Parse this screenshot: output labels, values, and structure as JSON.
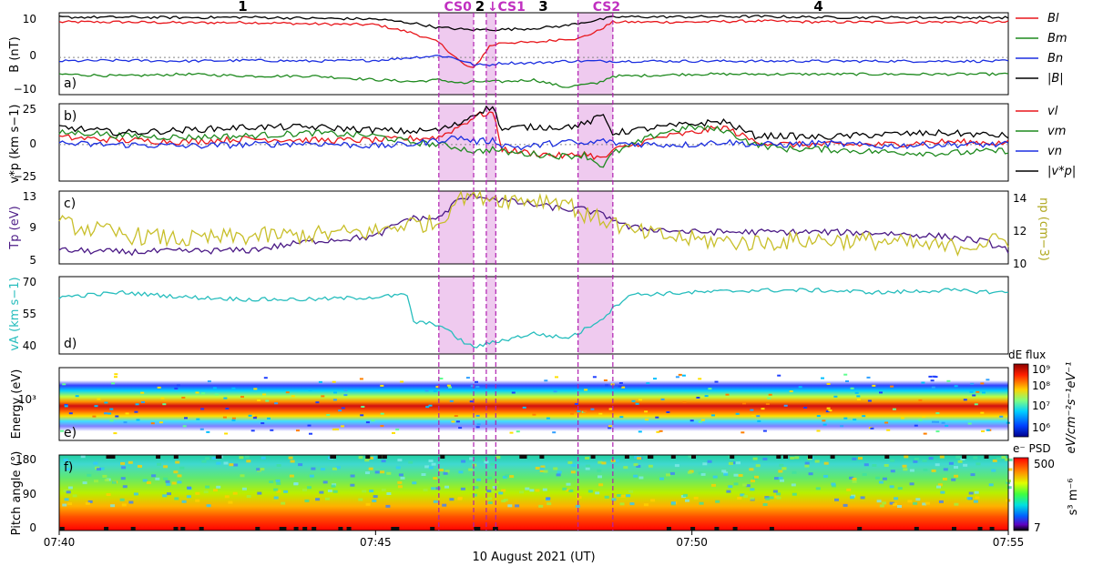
{
  "xlabel": "10 August 2021 (UT)",
  "x_ticks": [
    "07:40",
    "07:45",
    "07:50",
    "07:55"
  ],
  "x_range": [
    0,
    15
  ],
  "region_numbers": [
    {
      "label": "1",
      "t": 2.9
    },
    {
      "label": "2",
      "t": 6.65
    },
    {
      "label": "3",
      "t": 7.65
    },
    {
      "label": "4",
      "t": 12.0
    }
  ],
  "cs_labels": [
    {
      "label": "CS0",
      "t": 6.3
    },
    {
      "label": "↓",
      "t": 6.85
    },
    {
      "label": "CS1",
      "t": 7.15
    },
    {
      "label": "CS2",
      "t": 8.65
    }
  ],
  "cs_shaded_intervals": [
    [
      6.0,
      6.55
    ],
    [
      6.75,
      6.9
    ],
    [
      8.2,
      8.75
    ]
  ],
  "cs_boundaries": [
    6.0,
    6.55,
    6.75,
    6.9,
    8.2,
    8.75
  ],
  "colors": {
    "red": "#e8161b",
    "green": "#1f8a1f",
    "blue": "#1b2ee0",
    "black": "#000000",
    "purple": "#4b1a86",
    "olive": "#c8bf2a",
    "cyan": "#26bdbd",
    "cs_shade": "#e9b8ea",
    "cs_line": "#b020b0"
  },
  "panels": {
    "a": {
      "letter": "a)",
      "ylabel": "B (nT)",
      "ylim": [
        -10,
        12
      ],
      "ticks": [
        "10",
        "0",
        "−10"
      ]
    },
    "b": {
      "letter": "b)",
      "ylabel": "v*p (km s−1)",
      "ylim": [
        -25,
        28
      ],
      "ticks": [
        "25",
        "0",
        "−25"
      ]
    },
    "c": {
      "letter": "c)",
      "ylabel_left": "Tp (eV)",
      "ylabel_right": "np (cm−3)",
      "ticks_left": [
        "13",
        "9",
        "5"
      ],
      "ticks_right": [
        "14",
        "12",
        "10"
      ]
    },
    "d": {
      "letter": "d)",
      "ylabel": "vA (km s−1)",
      "ylim": [
        36,
        70
      ],
      "ticks": [
        "70",
        "55",
        "40"
      ]
    },
    "e": {
      "letter": "e)",
      "ylabel": "Energy (eV)",
      "ticks": [
        "10³"
      ],
      "colorbar_title": "dE flux",
      "colorbar_ticks": [
        "10⁹",
        "10⁸",
        "10⁷",
        "10⁶"
      ],
      "colorbar_label": "eV/cm⁻²s⁻¹eV⁻¹"
    },
    "f": {
      "letter": "f)",
      "ylabel": "Pitch angle (°)",
      "ticks": [
        "180",
        "90",
        "0"
      ],
      "colorbar_title": "e⁻ PSD",
      "colorbar_ticks": [
        "500",
        "7"
      ],
      "colorbar_label": "s³ m⁻⁶"
    }
  },
  "legend_a": [
    "Bl",
    "Bm",
    "Bn",
    "|B|"
  ],
  "legend_b": [
    "vl",
    "vm",
    "vn",
    "|v*p|"
  ],
  "chart_data": [
    {
      "type": "line",
      "panel": "a",
      "x": [
        0,
        1,
        2,
        3,
        4,
        5,
        5.6,
        6.0,
        6.2,
        6.4,
        6.55,
        6.8,
        7.0,
        7.5,
        8.0,
        8.2,
        8.5,
        8.75,
        9,
        10,
        11,
        12,
        13,
        14,
        15
      ],
      "series": [
        {
          "name": "Bl",
          "color": "red",
          "values": [
            9.5,
            9.5,
            9.3,
            9.4,
            9.0,
            8.8,
            6.5,
            4,
            1,
            -2,
            -3,
            3,
            4,
            4,
            5,
            5,
            7,
            9.5,
            9.5,
            9.5,
            9.8,
            9.5,
            9.5,
            9.5,
            9.5
          ]
        },
        {
          "name": "Bm",
          "color": "green",
          "values": [
            -4.5,
            -5,
            -4.5,
            -5,
            -5,
            -6,
            -6.5,
            -6,
            -6.5,
            -7,
            -6.5,
            -6.5,
            -6.5,
            -6,
            -8,
            -7.5,
            -7,
            -5,
            -5,
            -4.5,
            -4.5,
            -4.5,
            -4.5,
            -4.5,
            -4.5
          ]
        },
        {
          "name": "Bn",
          "color": "blue",
          "values": [
            -1,
            -0.8,
            -1,
            -0.8,
            -1,
            -0.8,
            0,
            0.5,
            0,
            -1,
            -2,
            -2,
            -1.5,
            -1.5,
            -1,
            -1,
            -1,
            -1,
            -1,
            -1,
            -1,
            -1,
            -1,
            -1,
            -1
          ]
        },
        {
          "name": "|B|",
          "color": "black",
          "values": [
            10.8,
            10.8,
            10.7,
            10.8,
            10.5,
            10.3,
            9.2,
            8.0,
            7.8,
            7.5,
            7.4,
            7.5,
            7.5,
            7.8,
            8.5,
            9.2,
            10.0,
            10.8,
            10.9,
            10.9,
            11.0,
            10.8,
            10.7,
            10.7,
            10.7
          ]
        }
      ]
    },
    {
      "type": "line",
      "panel": "b",
      "x": [
        0,
        0.5,
        1,
        2,
        3,
        4,
        5,
        5.5,
        6.0,
        6.3,
        6.6,
        6.85,
        7.0,
        7.3,
        8.0,
        8.3,
        8.6,
        8.75,
        9.5,
        10,
        10.5,
        11,
        11.5,
        12,
        13,
        14,
        15
      ],
      "series": [
        {
          "name": "vl",
          "color": "red",
          "values": [
            5,
            4,
            3,
            2,
            4,
            3,
            3,
            4,
            5,
            12,
            20,
            22,
            -3,
            -5,
            -8,
            -6,
            -10,
            -4,
            5,
            8,
            12,
            2,
            0,
            0,
            0,
            2,
            1
          ]
        },
        {
          "name": "vm",
          "color": "green",
          "values": [
            8,
            8,
            6,
            5,
            6,
            8,
            6,
            2,
            0,
            -2,
            -5,
            -3,
            -5,
            -6,
            -8,
            -7,
            -15,
            -6,
            8,
            12,
            10,
            0,
            -3,
            -3,
            -5,
            -6,
            -4
          ]
        },
        {
          "name": "vn",
          "color": "blue",
          "values": [
            1,
            0,
            0,
            -1,
            0,
            1,
            -1,
            0,
            3,
            5,
            2,
            3,
            0,
            -2,
            2,
            0,
            3,
            1,
            0,
            0,
            2,
            0,
            0,
            1,
            -1,
            0,
            0
          ]
        },
        {
          "name": "|v*p|",
          "color": "black",
          "values": [
            12,
            10,
            8,
            10,
            12,
            12,
            10,
            9,
            10,
            14,
            22,
            26,
            10,
            12,
            12,
            14,
            20,
            8,
            12,
            14,
            16,
            6,
            6,
            5,
            7,
            8,
            6
          ]
        }
      ]
    },
    {
      "type": "line",
      "panel": "c",
      "x": [
        0,
        1,
        2,
        3,
        4,
        5,
        5.5,
        6.0,
        6.3,
        6.6,
        7.0,
        7.5,
        8.0,
        8.3,
        8.75,
        9,
        10,
        11,
        12,
        13,
        14,
        14.6,
        15
      ],
      "series": [
        {
          "name": "Tp",
          "axis": "left",
          "ylim": [
            5,
            13
          ],
          "color": "purple",
          "values": [
            6.5,
            6.3,
            6.4,
            6.5,
            7.5,
            8,
            10,
            10,
            12,
            12.5,
            12,
            11.5,
            11,
            11,
            10,
            9,
            8.5,
            8.5,
            8.5,
            8.4,
            8,
            7.5,
            6.5
          ]
        },
        {
          "name": "np",
          "axis": "right",
          "ylim": [
            10,
            14.5
          ],
          "color": "olive",
          "values": [
            12.5,
            11.8,
            11.5,
            11.7,
            11.8,
            12,
            12.5,
            12.5,
            14.2,
            14.3,
            14.0,
            14.0,
            13.9,
            13.0,
            12.6,
            12,
            11.5,
            11.3,
            11.5,
            11.4,
            11,
            11.3,
            11.5
          ]
        }
      ]
    },
    {
      "type": "line",
      "panel": "d",
      "x": [
        0,
        1,
        2,
        3,
        4,
        5,
        5.5,
        5.6,
        6.0,
        6.4,
        6.55,
        7.0,
        7.5,
        8.0,
        8.2,
        8.6,
        8.75,
        9,
        10,
        11,
        12,
        13,
        14,
        15
      ],
      "series": [
        {
          "name": "vA",
          "color": "cyan",
          "values": [
            61,
            63,
            61,
            60,
            60,
            61,
            62,
            50,
            49,
            41,
            39,
            42,
            45,
            43,
            45,
            52,
            56,
            62,
            63,
            64,
            64,
            63,
            64,
            63
          ]
        }
      ]
    }
  ]
}
